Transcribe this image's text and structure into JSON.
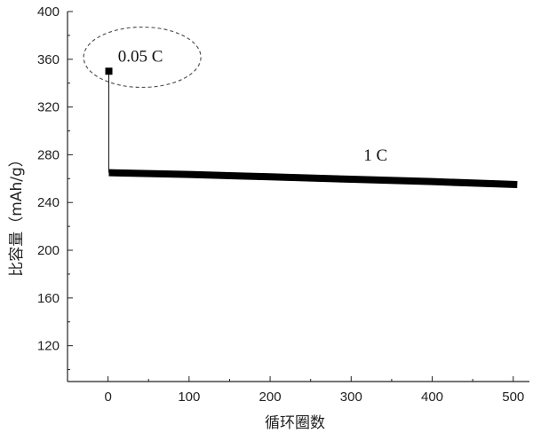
{
  "chart_data": {
    "type": "line",
    "xlabel": "循环圈数",
    "ylabel": "比容量（mAh/g）",
    "xlim": [
      -50,
      520
    ],
    "ylim": [
      90,
      400
    ],
    "xticks": [
      0,
      100,
      200,
      300,
      400,
      500
    ],
    "yticks": [
      120,
      160,
      200,
      240,
      280,
      320,
      360,
      400
    ],
    "grid": false,
    "series": [
      {
        "name": "0.05 C",
        "x": [
          1
        ],
        "y": [
          350
        ]
      },
      {
        "name": "1 C",
        "x": [
          1,
          100,
          200,
          300,
          400,
          505
        ],
        "y": [
          265,
          263.5,
          261.5,
          259.5,
          257.5,
          255
        ]
      }
    ],
    "annotations": [
      {
        "text": "0.05 C",
        "x": 40,
        "y": 358,
        "circled": true
      },
      {
        "text": "1 C",
        "x": 330,
        "y": 275
      }
    ]
  }
}
